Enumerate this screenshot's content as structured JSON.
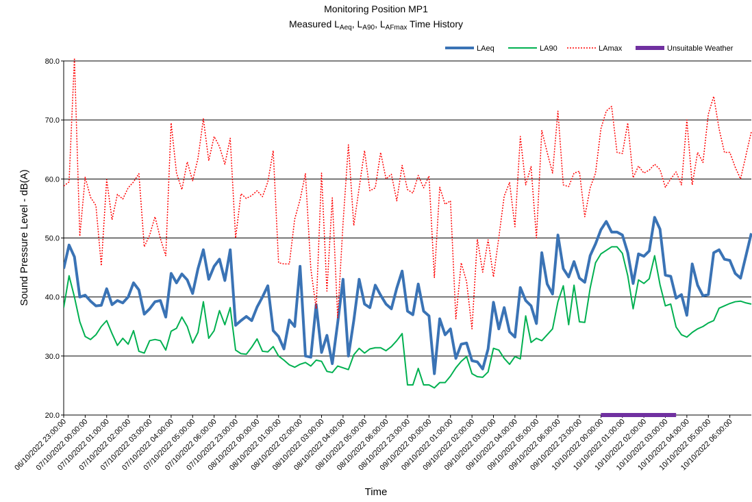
{
  "chart_data": {
    "type": "line",
    "title": "Monitoring Position MP1",
    "subtitle": [
      "Measured L",
      "Aeq",
      ", L",
      "A90",
      ", L",
      "AFmax",
      " Time History"
    ],
    "xlabel": "Time",
    "ylabel": "Sound Pressure Level -  dB(A)",
    "ylim": [
      20,
      80
    ],
    "yticks": [
      {
        "value": 20,
        "label": "20.0"
      },
      {
        "value": 30,
        "label": "30.0"
      },
      {
        "value": 40,
        "label": "40.0"
      },
      {
        "value": 50,
        "label": "50.0"
      },
      {
        "value": 60,
        "label": "60.0"
      },
      {
        "value": 70,
        "label": "70.0"
      },
      {
        "value": 80,
        "label": "80.0"
      }
    ],
    "grid": true,
    "legend": "top-right",
    "categories": [
      "06/10/2022 23:00:00",
      null,
      null,
      null,
      "07/10/2022 00:00:00",
      null,
      null,
      null,
      "07/10/2022 01:00:00",
      null,
      null,
      null,
      "07/10/2022 02:00:00",
      null,
      null,
      null,
      "07/10/2022 03:00:00",
      null,
      null,
      null,
      "07/10/2022 04:00:00",
      null,
      null,
      null,
      "07/10/2022 05:00:00",
      null,
      null,
      null,
      "07/10/2022 06:00:00",
      null,
      null,
      null,
      "07/10/2022 23:00:00",
      null,
      null,
      null,
      "08/10/2022 00:00:00",
      null,
      null,
      null,
      "08/10/2022 01:00:00",
      null,
      null,
      null,
      "08/10/2022 02:00:00",
      null,
      null,
      null,
      "08/10/2022 03:00:00",
      null,
      null,
      null,
      "08/10/2022 04:00:00",
      null,
      null,
      null,
      "08/10/2022 05:00:00",
      null,
      null,
      null,
      "08/10/2022 06:00:00",
      null,
      null,
      null,
      "08/10/2022 23:00:00",
      null,
      null,
      null,
      "09/10/2022 00:00:00",
      null,
      null,
      null,
      "09/10/2022 01:00:00",
      null,
      null,
      null,
      "09/10/2022 02:00:00",
      null,
      null,
      null,
      "09/10/2022 03:00:00",
      null,
      null,
      null,
      "09/10/2022 04:00:00",
      null,
      null,
      null,
      "09/10/2022 05:00:00",
      null,
      null,
      null,
      "09/10/2022 06:00:00",
      null,
      null,
      null,
      "09/10/2022 23:00:00",
      null,
      null,
      null,
      "10/10/2022 00:00:00",
      null,
      null,
      null,
      "10/10/2022 01:00:00",
      null,
      null,
      null,
      "10/10/2022 02:00:00",
      null,
      null,
      null,
      "10/10/2022 03:00:00",
      null,
      null,
      null,
      "10/10/2022 04:00:00",
      null,
      null,
      null,
      "10/10/2022 05:00:00",
      null,
      null,
      null,
      "10/10/2022 06:00:00",
      null,
      null,
      null,
      null
    ],
    "series": [
      {
        "name": "LAeq",
        "color": "#3a73b5",
        "width": 4,
        "dash": "solid",
        "values": [
          44.8,
          48.8,
          46.8,
          40.0,
          40.3,
          39.3,
          38.5,
          38.6,
          41.4,
          38.7,
          39.4,
          39.0,
          40.0,
          42.4,
          41.2,
          37.1,
          38.0,
          39.2,
          39.4,
          36.6,
          44.0,
          42.4,
          43.9,
          42.9,
          40.6,
          44.8,
          48.0,
          43.0,
          45.2,
          46.4,
          42.8,
          48.0,
          35.2,
          36.0,
          36.7,
          36.0,
          38.3,
          40.0,
          41.9,
          34.3,
          33.3,
          31.2,
          36.1,
          35.0,
          45.2,
          30.0,
          29.8,
          38.7,
          30.6,
          33.5,
          28.7,
          35.6,
          43.0,
          30.0,
          36.0,
          43.0,
          38.8,
          38.2,
          42.0,
          40.3,
          38.8,
          38.0,
          41.5,
          44.4,
          37.6,
          37.0,
          42.2,
          37.6,
          36.8,
          27.0,
          36.3,
          33.6,
          34.6,
          29.6,
          32.0,
          32.2,
          29.2,
          29.0,
          27.8,
          31.2,
          39.1,
          34.6,
          38.2,
          34.1,
          33.2,
          41.6,
          39.4,
          38.5,
          35.5,
          47.5,
          42.2,
          40.5,
          50.5,
          44.8,
          43.4,
          46.0,
          43.2,
          42.5,
          47.0,
          49.0,
          51.4,
          52.8,
          51.0,
          51.0,
          50.5,
          47.5,
          42.3,
          47.3,
          46.9,
          47.8,
          53.5,
          51.5,
          43.7,
          43.5,
          39.8,
          40.4,
          36.9,
          45.6,
          42.0,
          40.2,
          40.4,
          47.5,
          48.0,
          46.4,
          46.2,
          44.0,
          43.2,
          47.0,
          50.8
        ]
      },
      {
        "name": "LA90",
        "color": "#00b050",
        "width": 2,
        "dash": "solid",
        "values": [
          38.2,
          43.6,
          40.0,
          35.8,
          33.3,
          32.8,
          33.6,
          35.0,
          36.0,
          33.8,
          31.8,
          33.0,
          32.0,
          34.3,
          30.8,
          30.5,
          32.6,
          32.8,
          32.6,
          31.0,
          34.2,
          34.7,
          36.6,
          35.0,
          32.2,
          34.0,
          39.2,
          33.0,
          34.3,
          37.7,
          35.3,
          38.2,
          31.0,
          30.4,
          30.3,
          31.5,
          32.9,
          30.8,
          30.7,
          31.6,
          30.0,
          29.3,
          28.5,
          28.1,
          28.6,
          28.9,
          28.3,
          29.3,
          29.1,
          27.4,
          27.2,
          28.3,
          28.0,
          27.7,
          30.2,
          31.3,
          30.5,
          31.2,
          31.4,
          31.4,
          30.9,
          31.6,
          32.6,
          33.8,
          25.1,
          25.1,
          27.9,
          25.1,
          25.1,
          24.6,
          25.5,
          25.5,
          26.6,
          28.0,
          29.1,
          29.9,
          27.0,
          26.5,
          26.4,
          27.3,
          31.3,
          31.0,
          29.6,
          28.6,
          29.9,
          29.5,
          36.8,
          32.3,
          33.0,
          32.6,
          33.6,
          34.6,
          39.2,
          41.9,
          35.3,
          42.0,
          35.8,
          35.7,
          41.5,
          45.8,
          47.3,
          47.9,
          48.5,
          48.5,
          47.4,
          43.6,
          38.0,
          42.9,
          42.3,
          43.1,
          47.0,
          42.1,
          38.5,
          38.8,
          34.9,
          33.6,
          33.2,
          34.0,
          34.6,
          35.0,
          35.6,
          36.0,
          38.1,
          38.5,
          38.9,
          39.2,
          39.3,
          39.0,
          38.8
        ]
      },
      {
        "name": "LAmax",
        "color": "#ff0000",
        "width": 1.5,
        "dash": "dotted",
        "values": [
          58.8,
          59.5,
          80.5,
          50.3,
          60.3,
          56.9,
          55.5,
          45.3,
          59.9,
          53.1,
          57.4,
          56.6,
          58.5,
          59.5,
          60.9,
          48.5,
          50.5,
          53.6,
          49.9,
          47.0,
          69.5,
          61.0,
          58.2,
          62.9,
          59.7,
          63.5,
          70.2,
          63.1,
          67.2,
          65.5,
          62.5,
          66.9,
          50.0,
          57.5,
          56.7,
          57.2,
          58.0,
          57.0,
          59.5,
          64.8,
          45.8,
          45.6,
          45.6,
          53.2,
          56.5,
          60.9,
          44.8,
          38.0,
          61.0,
          41.0,
          56.8,
          36.5,
          52.5,
          65.8,
          52.1,
          58.5,
          64.8,
          58.0,
          58.5,
          64.5,
          60.0,
          60.8,
          56.3,
          62.3,
          58.2,
          57.6,
          60.6,
          58.5,
          60.5,
          43.3,
          58.6,
          55.7,
          56.3,
          36.3,
          45.8,
          42.6,
          34.6,
          49.8,
          44.2,
          49.7,
          43.4,
          50.1,
          57.1,
          59.4,
          51.9,
          67.2,
          59.0,
          62.1,
          50.0,
          68.2,
          64.5,
          61.0,
          71.5,
          59.0,
          58.7,
          61.0,
          61.3,
          53.6,
          58.5,
          61.0,
          68.5,
          71.5,
          72.3,
          64.5,
          64.3,
          69.5,
          60.2,
          62.2,
          61.0,
          61.5,
          62.5,
          61.6,
          58.6,
          60.0,
          61.2,
          59.0,
          70.0,
          59.0,
          64.5,
          62.8,
          71.0,
          74.0,
          68.5,
          64.5,
          64.5,
          62.0,
          60.0,
          64.0,
          68.0
        ]
      },
      {
        "name": "Unsuitable Weather",
        "color": "#7030a0",
        "width": 6,
        "dash": "solid",
        "values": [
          null,
          null,
          null,
          null,
          null,
          null,
          null,
          null,
          null,
          null,
          null,
          null,
          null,
          null,
          null,
          null,
          null,
          null,
          null,
          null,
          null,
          null,
          null,
          null,
          null,
          null,
          null,
          null,
          null,
          null,
          null,
          null,
          null,
          null,
          null,
          null,
          null,
          null,
          null,
          null,
          null,
          null,
          null,
          null,
          null,
          null,
          null,
          null,
          null,
          null,
          null,
          null,
          null,
          null,
          null,
          null,
          null,
          null,
          null,
          null,
          null,
          null,
          null,
          null,
          null,
          null,
          null,
          null,
          null,
          null,
          null,
          null,
          null,
          null,
          null,
          null,
          null,
          null,
          null,
          null,
          null,
          null,
          null,
          null,
          null,
          null,
          null,
          null,
          null,
          null,
          null,
          null,
          null,
          null,
          null,
          null,
          null,
          null,
          null,
          null,
          20,
          20,
          20,
          20,
          20,
          20,
          20,
          20,
          20,
          20,
          20,
          20,
          20,
          20,
          20,
          null,
          null,
          null,
          null,
          null,
          null,
          null,
          null,
          null,
          null,
          null,
          null,
          null,
          null
        ]
      }
    ]
  }
}
